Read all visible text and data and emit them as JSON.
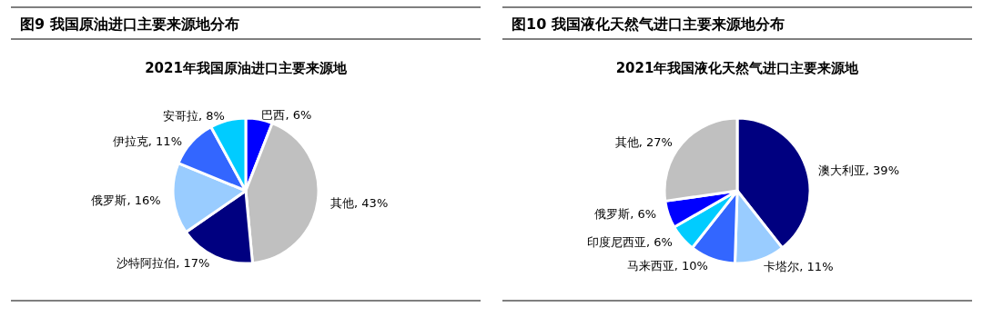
{
  "chart_data": [
    {
      "type": "pie",
      "title": "图9  我国原油进口主要来源地分布",
      "subtitle": "2021年我国原油进口主要来源地",
      "categories": [
        "巴西",
        "其他",
        "沙特阿拉伯",
        "俄罗斯",
        "伊拉克",
        "安哥拉"
      ],
      "values": [
        6,
        43,
        17,
        16,
        11,
        8
      ],
      "value_labels": [
        "6%",
        "43%",
        "17%",
        "16%",
        "11%",
        "8%"
      ],
      "colors": [
        "#0000ff",
        "#c0c0c0",
        "#000080",
        "#99ccff",
        "#3366ff",
        "#00ccff"
      ]
    },
    {
      "type": "pie",
      "title": "图10 我国液化天然气进口主要来源地分布",
      "subtitle": "2021年我国液化天然气进口主要来源地",
      "categories": [
        "澳大利亚",
        "卡塔尔",
        "马来西亚",
        "印度尼西亚",
        "俄罗斯",
        "其他"
      ],
      "values": [
        39,
        11,
        10,
        6,
        6,
        27
      ],
      "value_labels": [
        "39%",
        "11%",
        "10%",
        "6%",
        "6%",
        "27%"
      ],
      "colors": [
        "#000080",
        "#99ccff",
        "#3366ff",
        "#00ccff",
        "#0000ff",
        "#c0c0c0"
      ]
    }
  ]
}
